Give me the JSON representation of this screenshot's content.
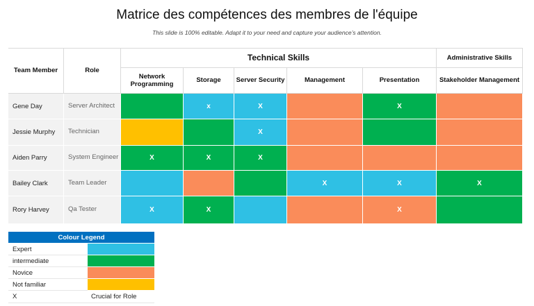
{
  "title": "Matrice des compétences des membres de l'équipe",
  "subtitle": "This slide is 100% editable. Adapt it to your need and capture your audience’s attention.",
  "colors": {
    "expert": "#2fc0e4",
    "intermediate": "#00b050",
    "novice": "#fa8c5a",
    "not_familiar": "#ffc000"
  },
  "table": {
    "header": {
      "team_member": "Team Member",
      "role": "Role",
      "technical_group": "Technical Skills",
      "administrative_group": "Administrative Skills",
      "skills": [
        "Network Programming",
        "Storage",
        "Server Security",
        "Management",
        "Presentation",
        "Stakeholder Management"
      ]
    },
    "rows": [
      {
        "member": "Gene Day",
        "role": "Server Architect",
        "levels": [
          "intermediate",
          "expert",
          "expert",
          "novice",
          "intermediate",
          "novice"
        ],
        "marks": [
          "",
          "x",
          "X",
          "",
          "X",
          ""
        ]
      },
      {
        "member": "Jessie Murphy",
        "role": "Technician",
        "levels": [
          "not_familiar",
          "intermediate",
          "expert",
          "novice",
          "intermediate",
          "novice"
        ],
        "marks": [
          "",
          "",
          "X",
          "",
          "",
          ""
        ]
      },
      {
        "member": "Aiden Parry",
        "role": "System Engineer",
        "levels": [
          "intermediate",
          "intermediate",
          "intermediate",
          "novice",
          "novice",
          "novice"
        ],
        "marks": [
          "X",
          "X",
          "X",
          "",
          "",
          ""
        ]
      },
      {
        "member": "Bailey Clark",
        "role": "Team Leader",
        "levels": [
          "expert",
          "novice",
          "intermediate",
          "expert",
          "expert",
          "intermediate"
        ],
        "marks": [
          "",
          "",
          "",
          "X",
          "X",
          "X"
        ]
      },
      {
        "member": "Rory Harvey",
        "role": "Qa Tester",
        "levels": [
          "expert",
          "intermediate",
          "expert",
          "novice",
          "novice",
          "intermediate"
        ],
        "marks": [
          "X",
          "X",
          "",
          "",
          "X",
          ""
        ]
      }
    ]
  },
  "legend": {
    "title": "Colour Legend",
    "items": [
      {
        "label": "Expert",
        "level": "expert"
      },
      {
        "label": "intermediate",
        "level": "intermediate"
      },
      {
        "label": "Novice",
        "level": "novice"
      },
      {
        "label": "Not familiar",
        "level": "not_familiar"
      }
    ],
    "mark_label": "X",
    "mark_meaning": "Crucial for Role"
  }
}
